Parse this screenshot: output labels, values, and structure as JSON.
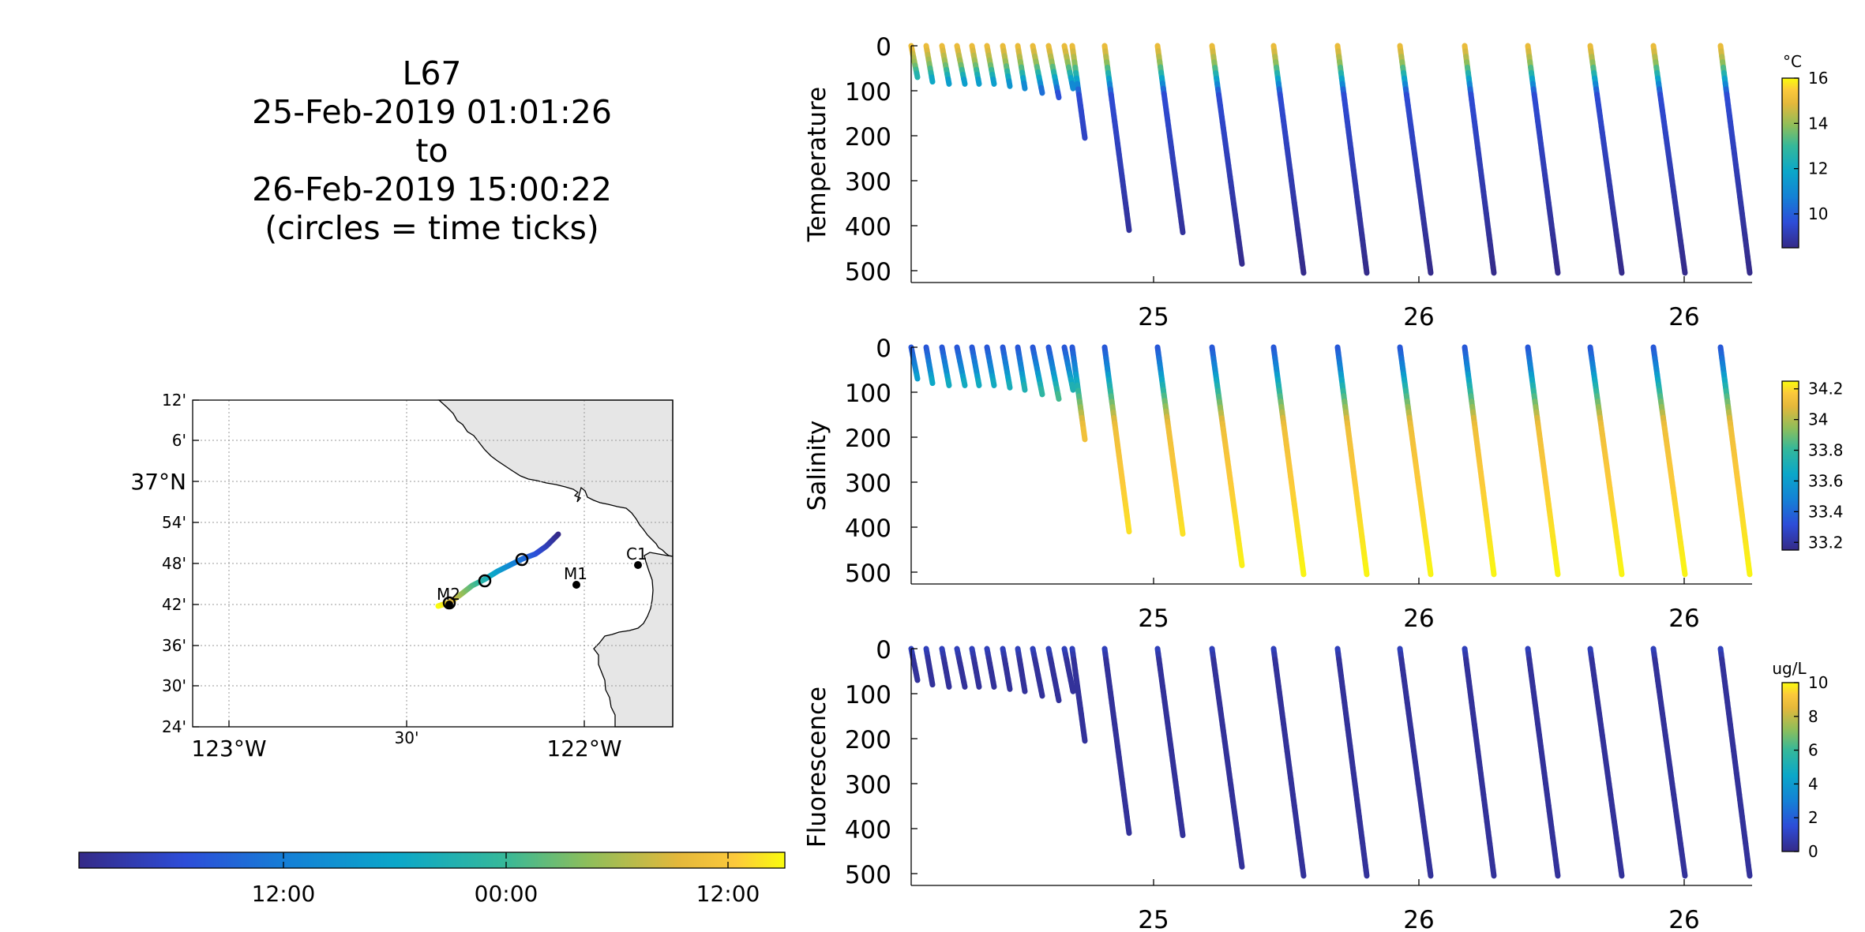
{
  "title": {
    "line1": "L67",
    "line2": "25-Feb-2019 01:01:26",
    "line3": "to",
    "line4": "26-Feb-2019 15:00:22",
    "line5": "(circles = time ticks)"
  },
  "chart_data": [
    {
      "type": "map",
      "lat_ticks": [
        "12'",
        "6'",
        "37°N",
        "54'",
        "48'",
        "42'",
        "36'",
        "30'",
        "24'"
      ],
      "lon_ticks": [
        "123°W",
        "30'",
        "122°W"
      ],
      "lat_range": [
        36.4,
        37.2
      ],
      "lon_range": [
        -123.05,
        -121.7
      ],
      "grid": true,
      "stations": [
        {
          "name": "M2",
          "lat": 36.7,
          "lon": -122.39
        },
        {
          "name": "M1",
          "lat": 36.747,
          "lon": -122.02
        },
        {
          "name": "C1",
          "lat": 36.797,
          "lon": -121.847
        }
      ],
      "track": {
        "start": {
          "lat": 36.7,
          "lon": -122.42
        },
        "end": {
          "lat": 36.87,
          "lon": -122.07
        }
      },
      "time_tick_circles": 3,
      "land_color": "#e6e6e6"
    },
    {
      "type": "colorbar",
      "orientation": "horizontal",
      "tick_labels": [
        "12:00",
        "00:00",
        "12:00"
      ]
    },
    {
      "type": "scatter",
      "ylabel": "Temperature",
      "unit": "°C",
      "yticks": [
        "0",
        "100",
        "200",
        "300",
        "400",
        "500"
      ],
      "xticks": [
        "25",
        "26",
        "26"
      ],
      "ylim": [
        0,
        520
      ],
      "reversed_y": true,
      "colorbar": {
        "min": 8.5,
        "max": 16,
        "ticks": [
          "16",
          "14",
          "12",
          "10"
        ],
        "tick_values": [
          16,
          14,
          12,
          10
        ]
      },
      "profiles": [
        {
          "surface": 14.8,
          "deep": 9.0
        },
        {
          "surface": 13.2,
          "deep": 8.6
        }
      ]
    },
    {
      "type": "scatter",
      "ylabel": "Salinity",
      "yticks": [
        "0",
        "100",
        "200",
        "300",
        "400",
        "500"
      ],
      "xticks": [
        "25",
        "26",
        "26"
      ],
      "ylim": [
        0,
        520
      ],
      "reversed_y": true,
      "colorbar": {
        "min": 33.15,
        "max": 34.25,
        "ticks": [
          "34.2",
          "34",
          "33.8",
          "33.6",
          "33.4",
          "33.2"
        ],
        "tick_values": [
          34.2,
          34.0,
          33.8,
          33.6,
          33.4,
          33.2
        ]
      },
      "profiles": [
        {
          "surface": 33.3,
          "deep": 34.2
        }
      ]
    },
    {
      "type": "scatter",
      "ylabel": "Fluorescence",
      "unit": "ug/L",
      "yticks": [
        "0",
        "100",
        "200",
        "300",
        "400",
        "500"
      ],
      "xticks": [
        "25",
        "26",
        "26"
      ],
      "ylim": [
        0,
        520
      ],
      "reversed_y": true,
      "colorbar": {
        "min": 0,
        "max": 10,
        "ticks": [
          "10",
          "8",
          "6",
          "4",
          "2",
          "0"
        ],
        "tick_values": [
          10,
          8,
          6,
          4,
          2,
          0
        ]
      },
      "profiles": [
        {
          "surface": 0.6,
          "deep": 0.1
        }
      ]
    }
  ],
  "dive_profiles": [
    {
      "surface_x": 1154,
      "bottom_x": 1162,
      "max_depth": 70
    },
    {
      "surface_x": 1173,
      "bottom_x": 1181,
      "max_depth": 80
    },
    {
      "surface_x": 1193,
      "bottom_x": 1202,
      "max_depth": 85
    },
    {
      "surface_x": 1212,
      "bottom_x": 1222,
      "max_depth": 85
    },
    {
      "surface_x": 1231,
      "bottom_x": 1240,
      "max_depth": 85
    },
    {
      "surface_x": 1250,
      "bottom_x": 1259,
      "max_depth": 85
    },
    {
      "surface_x": 1270,
      "bottom_x": 1279,
      "max_depth": 90
    },
    {
      "surface_x": 1289,
      "bottom_x": 1298,
      "max_depth": 95
    },
    {
      "surface_x": 1308,
      "bottom_x": 1320,
      "max_depth": 105
    },
    {
      "surface_x": 1328,
      "bottom_x": 1341,
      "max_depth": 115
    },
    {
      "surface_x": 1348,
      "bottom_x": 1359,
      "max_depth": 95
    },
    {
      "surface_x": 1358,
      "bottom_x": 1374,
      "max_depth": 205
    },
    {
      "surface_x": 1399,
      "bottom_x": 1430,
      "max_depth": 410
    },
    {
      "surface_x": 1466,
      "bottom_x": 1498,
      "max_depth": 415
    },
    {
      "surface_x": 1535,
      "bottom_x": 1573,
      "max_depth": 485
    },
    {
      "surface_x": 1613,
      "bottom_x": 1651,
      "max_depth": 505
    },
    {
      "surface_x": 1694,
      "bottom_x": 1731,
      "max_depth": 505
    },
    {
      "surface_x": 1773,
      "bottom_x": 1812,
      "max_depth": 505
    },
    {
      "surface_x": 1855,
      "bottom_x": 1892,
      "max_depth": 505
    },
    {
      "surface_x": 1935,
      "bottom_x": 1973,
      "max_depth": 505
    },
    {
      "surface_x": 2014,
      "bottom_x": 2054,
      "max_depth": 505
    },
    {
      "surface_x": 2094,
      "bottom_x": 2134,
      "max_depth": 505
    },
    {
      "surface_x": 2179,
      "bottom_x": 2216,
      "max_depth": 505
    }
  ]
}
